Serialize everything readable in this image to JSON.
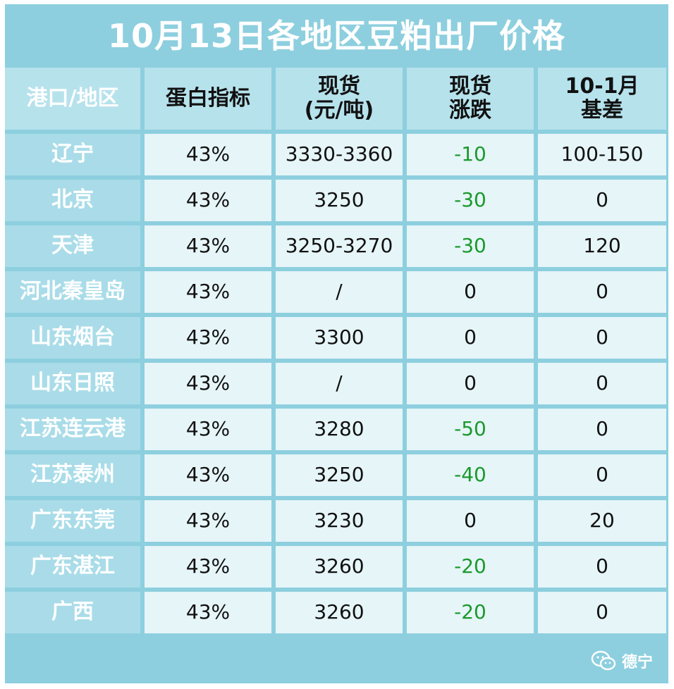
{
  "title": "10月13日各地区豆粕出厂价格",
  "headers": {
    "region": "港口/地区",
    "protein": "蛋白指标",
    "spot_line1": "现货",
    "spot_line2": "(元/吨)",
    "change_line1": "现货",
    "change_line2": "涨跌",
    "basis_line1": "10-1月",
    "basis_line2": "基差"
  },
  "rows": [
    {
      "region": "辽宁",
      "protein": "43%",
      "spot": "3330-3360",
      "change": "-10",
      "basis": "100-150"
    },
    {
      "region": "北京",
      "protein": "43%",
      "spot": "3250",
      "change": "-30",
      "basis": "0"
    },
    {
      "region": "天津",
      "protein": "43%",
      "spot": "3250-3270",
      "change": "-30",
      "basis": "120"
    },
    {
      "region": "河北秦皇岛",
      "protein": "43%",
      "spot": "/",
      "change": "0",
      "basis": "0"
    },
    {
      "region": "山东烟台",
      "protein": "43%",
      "spot": "3300",
      "change": "0",
      "basis": "0"
    },
    {
      "region": "山东日照",
      "protein": "43%",
      "spot": "/",
      "change": "0",
      "basis": "0"
    },
    {
      "region": "江苏连云港",
      "protein": "43%",
      "spot": "3280",
      "change": "-50",
      "basis": "0"
    },
    {
      "region": "江苏泰州",
      "protein": "43%",
      "spot": "3250",
      "change": "-40",
      "basis": "0"
    },
    {
      "region": "广东东莞",
      "protein": "43%",
      "spot": "3230",
      "change": "0",
      "basis": "20"
    },
    {
      "region": "广东湛江",
      "protein": "43%",
      "spot": "3260",
      "change": "-20",
      "basis": "0"
    },
    {
      "region": "广西",
      "protein": "43%",
      "spot": "3260",
      "change": "-20",
      "basis": "0"
    }
  ],
  "watermark": {
    "icon": "wechat-icon",
    "text": "德宁"
  },
  "colors": {
    "frame": "#8dcfdf",
    "header": "#b6e2ec",
    "label_cell": "#a9dce8",
    "value_cell": "#e6f5f8",
    "negative": "#1a9a2c"
  }
}
